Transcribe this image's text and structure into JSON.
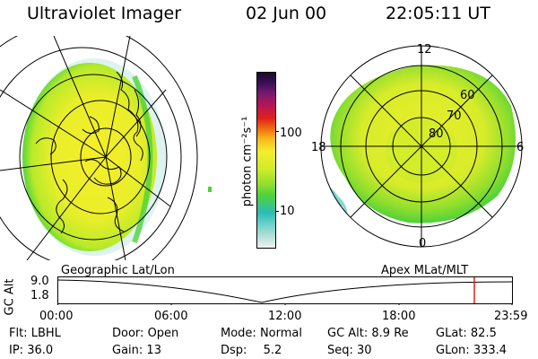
{
  "header": {
    "instrument": "Ultraviolet Imager",
    "date": "02 Jun 00",
    "time": "22:05:11 UT"
  },
  "colorbar": {
    "unit_label": "photon cm⁻²s⁻¹",
    "ticks": [
      "100",
      "10"
    ],
    "scale": "log",
    "colors": [
      "#1a0a2e",
      "#5a1a6e",
      "#b0155a",
      "#e0201c",
      "#f07a12",
      "#f7b91e",
      "#f4ee2a",
      "#b9ea2a",
      "#4fd23a",
      "#2bbcb5",
      "#a6dcd4",
      "#f0f0f0"
    ]
  },
  "left_map": {
    "label": "Geographic Lat/Lon"
  },
  "right_map": {
    "label": "Apex MLat/MLT",
    "lat_labels": [
      "60",
      "70",
      "80"
    ],
    "mlt_labels": {
      "top": "12",
      "left": "18",
      "right": "6",
      "bottom": "0"
    }
  },
  "altitude_plot": {
    "ylabel": "GC Alt",
    "yticks": [
      "9.0",
      "1.8"
    ],
    "xticks": [
      "00:00",
      "06:00",
      "12:00",
      "18:00",
      "23:59"
    ],
    "current_time_marker_color": "#e02020"
  },
  "info": {
    "row1": [
      {
        "label": "Flt:",
        "value": "LBHL"
      },
      {
        "label": "Door:",
        "value": "Open"
      },
      {
        "label": "Mode:",
        "value": "Normal"
      },
      {
        "label": "GC Alt:",
        "value": "8.9 Re"
      },
      {
        "label": "GLat:",
        "value": "82.5"
      }
    ],
    "row2": [
      {
        "label": "IP:",
        "value": "36.0"
      },
      {
        "label": "Gain:",
        "value": "13"
      },
      {
        "label": "Dsp:",
        "value": "5.2"
      },
      {
        "label": "Seq:",
        "value": "30"
      },
      {
        "label": "GLon:",
        "value": "333.4"
      }
    ]
  }
}
